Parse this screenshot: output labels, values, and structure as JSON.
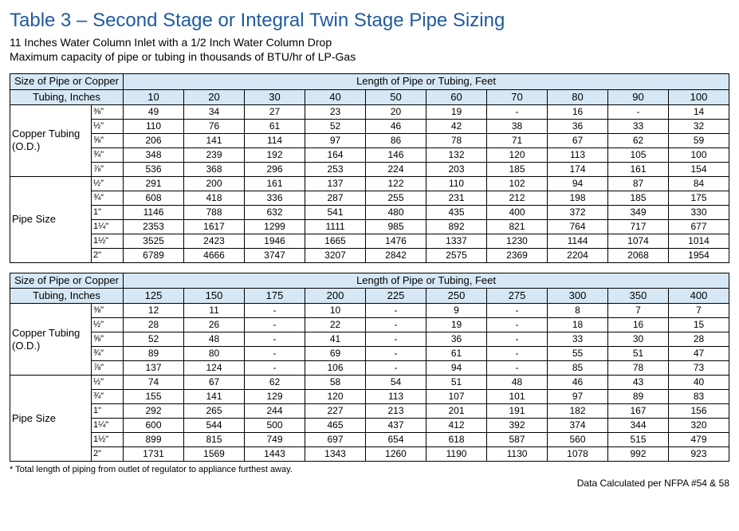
{
  "title": "Table 3 – Second Stage or Integral Twin Stage Pipe Sizing",
  "subtitle1": "11 Inches Water Column Inlet with a 1/2 Inch Water Column Drop",
  "subtitle2": "Maximum capacity of pipe or tubing in thousands of BTU/hr of LP-Gas",
  "footnote": "* Total length of piping from outlet of regulator to appliance furthest away.",
  "source": "Data Calculated per NFPA #54 & 58",
  "colors": {
    "title": "#1f5a9e",
    "header_bg": "#d6e8f5",
    "border": "#000000",
    "text": "#000000",
    "background": "#ffffff"
  },
  "header_left_line1": "Size of Pipe or Copper",
  "header_left_line2": "Tubing, Inches",
  "header_right": "Length of Pipe or Tubing, Feet",
  "categories": [
    {
      "label": "Copper Tubing (O.D.)",
      "sizes": [
        "⅜\"",
        "½\"",
        "⅝\"",
        "¾\"",
        "⅞\""
      ]
    },
    {
      "label": "Pipe Size",
      "sizes": [
        "½\"",
        "¾\"",
        "1\"",
        "1¼\"",
        "1½\"",
        "2\""
      ]
    }
  ],
  "tableA": {
    "lengths": [
      "10",
      "20",
      "30",
      "40",
      "50",
      "60",
      "70",
      "80",
      "90",
      "100"
    ],
    "rows": [
      [
        "49",
        "34",
        "27",
        "23",
        "20",
        "19",
        "-",
        "16",
        "-",
        "14"
      ],
      [
        "110",
        "76",
        "61",
        "52",
        "46",
        "42",
        "38",
        "36",
        "33",
        "32"
      ],
      [
        "206",
        "141",
        "114",
        "97",
        "86",
        "78",
        "71",
        "67",
        "62",
        "59"
      ],
      [
        "348",
        "239",
        "192",
        "164",
        "146",
        "132",
        "120",
        "113",
        "105",
        "100"
      ],
      [
        "536",
        "368",
        "296",
        "253",
        "224",
        "203",
        "185",
        "174",
        "161",
        "154"
      ],
      [
        "291",
        "200",
        "161",
        "137",
        "122",
        "110",
        "102",
        "94",
        "87",
        "84"
      ],
      [
        "608",
        "418",
        "336",
        "287",
        "255",
        "231",
        "212",
        "198",
        "185",
        "175"
      ],
      [
        "1146",
        "788",
        "632",
        "541",
        "480",
        "435",
        "400",
        "372",
        "349",
        "330"
      ],
      [
        "2353",
        "1617",
        "1299",
        "1111",
        "985",
        "892",
        "821",
        "764",
        "717",
        "677"
      ],
      [
        "3525",
        "2423",
        "1946",
        "1665",
        "1476",
        "1337",
        "1230",
        "1144",
        "1074",
        "1014"
      ],
      [
        "6789",
        "4666",
        "3747",
        "3207",
        "2842",
        "2575",
        "2369",
        "2204",
        "2068",
        "1954"
      ]
    ]
  },
  "tableB": {
    "lengths": [
      "125",
      "150",
      "175",
      "200",
      "225",
      "250",
      "275",
      "300",
      "350",
      "400"
    ],
    "rows": [
      [
        "12",
        "11",
        "-",
        "10",
        "-",
        "9",
        "-",
        "8",
        "7",
        "7"
      ],
      [
        "28",
        "26",
        "-",
        "22",
        "-",
        "19",
        "-",
        "18",
        "16",
        "15"
      ],
      [
        "52",
        "48",
        "-",
        "41",
        "-",
        "36",
        "-",
        "33",
        "30",
        "28"
      ],
      [
        "89",
        "80",
        "-",
        "69",
        "-",
        "61",
        "-",
        "55",
        "51",
        "47"
      ],
      [
        "137",
        "124",
        "-",
        "106",
        "-",
        "94",
        "-",
        "85",
        "78",
        "73"
      ],
      [
        "74",
        "67",
        "62",
        "58",
        "54",
        "51",
        "48",
        "46",
        "43",
        "40"
      ],
      [
        "155",
        "141",
        "129",
        "120",
        "113",
        "107",
        "101",
        "97",
        "89",
        "83"
      ],
      [
        "292",
        "265",
        "244",
        "227",
        "213",
        "201",
        "191",
        "182",
        "167",
        "156"
      ],
      [
        "600",
        "544",
        "500",
        "465",
        "437",
        "412",
        "392",
        "374",
        "344",
        "320"
      ],
      [
        "899",
        "815",
        "749",
        "697",
        "654",
        "618",
        "587",
        "560",
        "515",
        "479"
      ],
      [
        "1731",
        "1569",
        "1443",
        "1343",
        "1260",
        "1190",
        "1130",
        "1078",
        "992",
        "923"
      ]
    ]
  }
}
